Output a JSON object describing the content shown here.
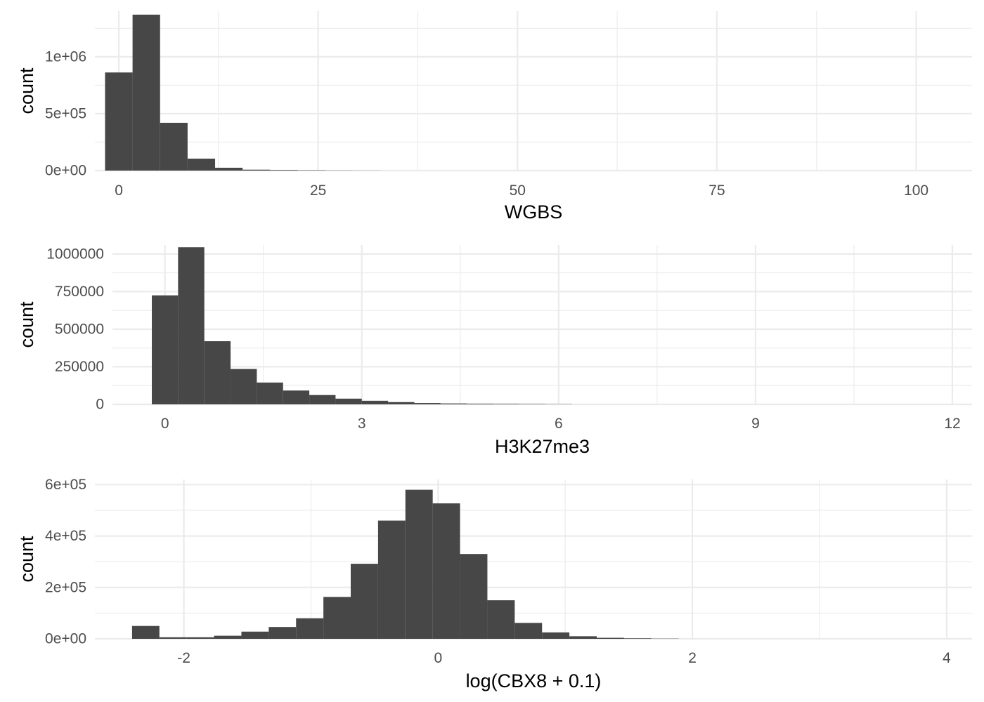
{
  "chart_data": [
    {
      "type": "bar",
      "subtype": "histogram",
      "xlabel": "WGBS",
      "ylabel": "count",
      "xlim": [
        -3,
        107
      ],
      "ylim": [
        0,
        1400000
      ],
      "x_major_ticks": [
        0,
        25,
        50,
        75,
        100
      ],
      "x_tick_labels": [
        "0",
        "25",
        "50",
        "75",
        "100"
      ],
      "x_minor_ticks": [
        12.5,
        37.5,
        62.5,
        87.5
      ],
      "y_major_ticks": [
        0,
        500000,
        1000000
      ],
      "y_tick_labels": [
        "0e+00",
        "5e+05",
        "1e+06"
      ],
      "y_minor_ticks": [
        250000,
        750000,
        1250000
      ],
      "grid": true,
      "bin_width": 3.45,
      "bin_centers": [
        0,
        3.45,
        6.9,
        10.35,
        13.8,
        17.25,
        20.7,
        24.15,
        27.6,
        31.05
      ],
      "values": [
        862000,
        1370000,
        420000,
        105000,
        25000,
        8000,
        5000,
        3000,
        1500,
        800
      ]
    },
    {
      "type": "bar",
      "subtype": "histogram",
      "xlabel": "H3K27me3",
      "ylabel": "count",
      "xlim": [
        -0.8,
        12.3
      ],
      "ylim": [
        0,
        1060000
      ],
      "x_major_ticks": [
        0,
        3,
        6,
        9,
        12
      ],
      "x_tick_labels": [
        "0",
        "3",
        "6",
        "9",
        "12"
      ],
      "x_minor_ticks": [
        1.5,
        4.5,
        7.5,
        10.5
      ],
      "y_major_ticks": [
        0,
        250000,
        500000,
        750000,
        1000000
      ],
      "y_tick_labels": [
        "0",
        "250000",
        "500000",
        "750000",
        "1000000"
      ],
      "y_minor_ticks": [
        125000,
        375000,
        625000,
        875000
      ],
      "grid": true,
      "bin_width": 0.4,
      "bin_centers": [
        0,
        0.4,
        0.8,
        1.2,
        1.6,
        2.0,
        2.4,
        2.8,
        3.2,
        3.6,
        4.0,
        4.4,
        4.8,
        5.2,
        5.6,
        6.0
      ],
      "values": [
        725000,
        1045000,
        420000,
        235000,
        145000,
        92000,
        62000,
        38000,
        24000,
        15000,
        9000,
        6000,
        4500,
        3500,
        2500,
        1500
      ]
    },
    {
      "type": "bar",
      "subtype": "histogram",
      "xlabel": "log(CBX8 + 0.1)",
      "ylabel": "count",
      "xlim": [
        -2.7,
        4.2
      ],
      "ylim": [
        0,
        620000
      ],
      "x_major_ticks": [
        -2,
        0,
        2,
        4
      ],
      "x_tick_labels": [
        "-2",
        "0",
        "2",
        "4"
      ],
      "x_minor_ticks": [
        -1,
        1,
        3
      ],
      "y_major_ticks": [
        0,
        200000,
        400000,
        600000
      ],
      "y_tick_labels": [
        "0e+00",
        "2e+05",
        "4e+05",
        "6e+05"
      ],
      "y_minor_ticks": [
        100000,
        300000,
        500000
      ],
      "grid": true,
      "bin_width": 0.215,
      "bin_centers": [
        -2.3,
        -2.085,
        -1.87,
        -1.655,
        -1.44,
        -1.225,
        -1.01,
        -0.795,
        -0.58,
        -0.365,
        -0.15,
        0.065,
        0.28,
        0.495,
        0.71,
        0.925,
        1.14,
        1.355,
        1.57,
        1.785
      ],
      "values": [
        50000,
        6000,
        6000,
        12000,
        28000,
        46000,
        80000,
        163000,
        292000,
        460000,
        580000,
        527000,
        330000,
        150000,
        62000,
        25000,
        10000,
        4000,
        2000,
        800
      ]
    }
  ]
}
